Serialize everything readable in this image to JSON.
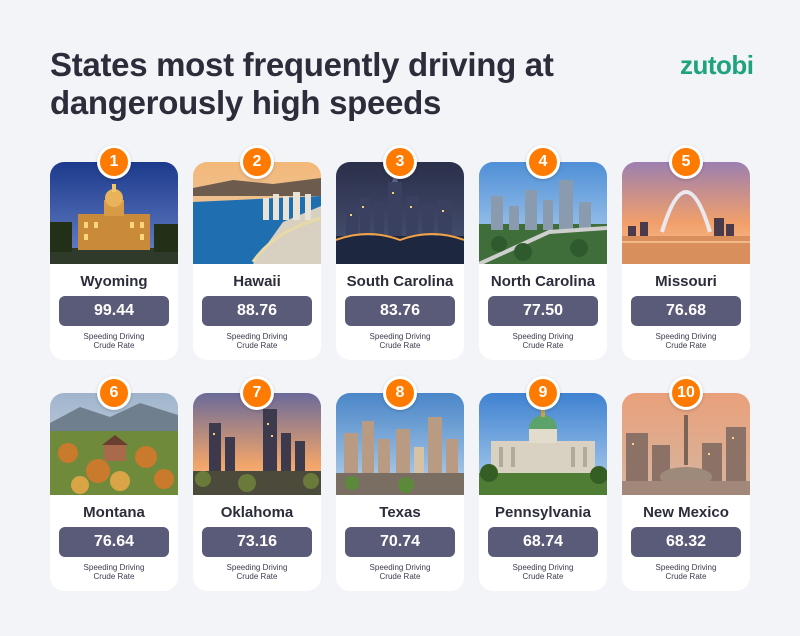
{
  "header": {
    "title": "States most frequently driving at dangerously high speeds",
    "brand": "zutobi"
  },
  "rate_label_line1": "Speeding Driving",
  "rate_label_line2": "Crude Rate",
  "colors": {
    "badge": "#ff7a00",
    "value_pill": "#5a5b78",
    "brand": "#1ea37e",
    "title": "#2b2d3a",
    "background": "#f3f4f7"
  },
  "cards": [
    {
      "rank": "1",
      "state": "Wyoming",
      "value": "99.44"
    },
    {
      "rank": "2",
      "state": "Hawaii",
      "value": "88.76"
    },
    {
      "rank": "3",
      "state": "South Carolina",
      "value": "83.76"
    },
    {
      "rank": "4",
      "state": "North Carolina",
      "value": "77.50"
    },
    {
      "rank": "5",
      "state": "Missouri",
      "value": "76.68"
    },
    {
      "rank": "6",
      "state": "Montana",
      "value": "76.64"
    },
    {
      "rank": "7",
      "state": "Oklahoma",
      "value": "73.16"
    },
    {
      "rank": "8",
      "state": "Texas",
      "value": "70.74"
    },
    {
      "rank": "9",
      "state": "Pennsylvania",
      "value": "68.74"
    },
    {
      "rank": "10",
      "state": "New Mexico",
      "value": "68.32"
    }
  ]
}
